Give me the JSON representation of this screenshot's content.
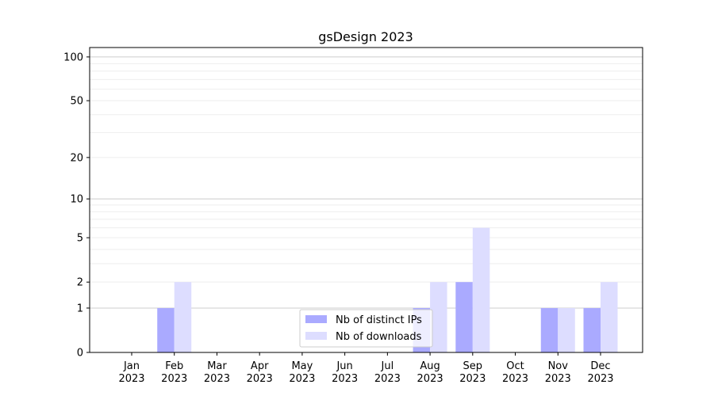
{
  "chart_data": {
    "type": "bar",
    "title": "gsDesign 2023",
    "xlabel": "",
    "ylabel": "",
    "yscale": "log(1+y)",
    "ylim": [
      0,
      116
    ],
    "yticks": [
      0,
      1,
      2,
      5,
      10,
      20,
      50,
      100
    ],
    "grid": true,
    "legend_position": "bottom-center",
    "categories": [
      "Jan\n2023",
      "Feb\n2023",
      "Mar\n2023",
      "Apr\n2023",
      "May\n2023",
      "Jun\n2023",
      "Jul\n2023",
      "Aug\n2023",
      "Sep\n2023",
      "Oct\n2023",
      "Nov\n2023",
      "Dec\n2023"
    ],
    "series": [
      {
        "name": "Nb of distinct IPs",
        "color": "#aaaaff",
        "values": [
          0,
          1,
          0,
          0,
          0,
          0,
          0,
          1,
          2,
          0,
          1,
          1
        ]
      },
      {
        "name": "Nb of downloads",
        "color": "#ddddff",
        "values": [
          0,
          2,
          0,
          0,
          0,
          0,
          0,
          2,
          6,
          0,
          1,
          2
        ]
      }
    ]
  }
}
